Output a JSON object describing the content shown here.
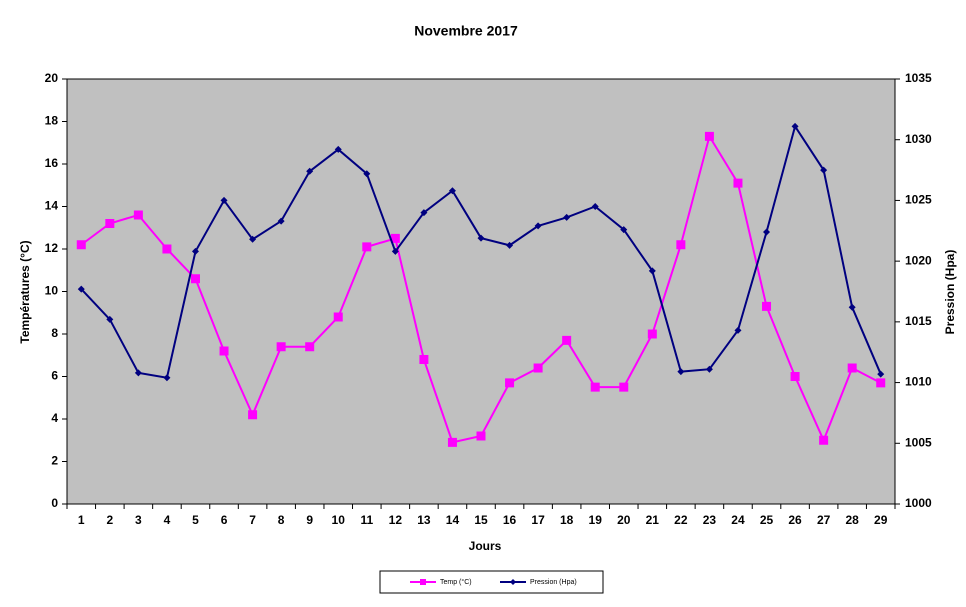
{
  "chart_data": {
    "type": "line",
    "title": "Novembre 2017",
    "x_label": "Jours",
    "y_label": "Températures (°C)",
    "y2_label": "Pression (Hpa)",
    "categories": [
      "1",
      "2",
      "3",
      "4",
      "5",
      "6",
      "7",
      "8",
      "9",
      "10",
      "11",
      "12",
      "13",
      "14",
      "15",
      "16",
      "17",
      "18",
      "19",
      "20",
      "21",
      "22",
      "23",
      "24",
      "25",
      "26",
      "27",
      "28",
      "29"
    ],
    "series": [
      {
        "name": "Temp (°C)",
        "color": "#ff00ff",
        "marker": "square",
        "values": [
          12.2,
          13.2,
          13.6,
          12.0,
          10.6,
          7.2,
          4.2,
          7.4,
          7.4,
          8.8,
          12.1,
          12.5,
          6.8,
          2.9,
          3.2,
          5.7,
          6.4,
          7.7,
          5.5,
          5.5,
          8.0,
          12.2,
          17.3,
          15.1,
          9.3,
          6.0,
          3.0,
          6.4,
          5.7
        ]
      },
      {
        "name": "Pression (Hpa)",
        "color": "#000080",
        "marker": "diamond",
        "axis": "y2",
        "values": [
          1017.7,
          1015.2,
          1010.8,
          1010.4,
          1020.8,
          1025.0,
          1021.8,
          1023.3,
          1027.4,
          1029.2,
          1027.2,
          1020.8,
          1024.0,
          1025.8,
          1021.9,
          1021.3,
          1022.9,
          1023.6,
          1024.5,
          1022.6,
          1019.2,
          1010.9,
          1011.1,
          1014.3,
          1022.4,
          1031.1,
          1027.5,
          1016.2,
          1010.7
        ]
      }
    ],
    "ylim": [
      0,
      20
    ],
    "yticks": [
      0,
      2,
      4,
      6,
      8,
      10,
      12,
      14,
      16,
      18,
      20
    ],
    "y2lim": [
      1000,
      1035
    ],
    "y2ticks": [
      1000,
      1005,
      1010,
      1015,
      1020,
      1025,
      1030,
      1035
    ],
    "grid": false,
    "legend": "bottom",
    "plot_background": "#c0c0c0"
  }
}
